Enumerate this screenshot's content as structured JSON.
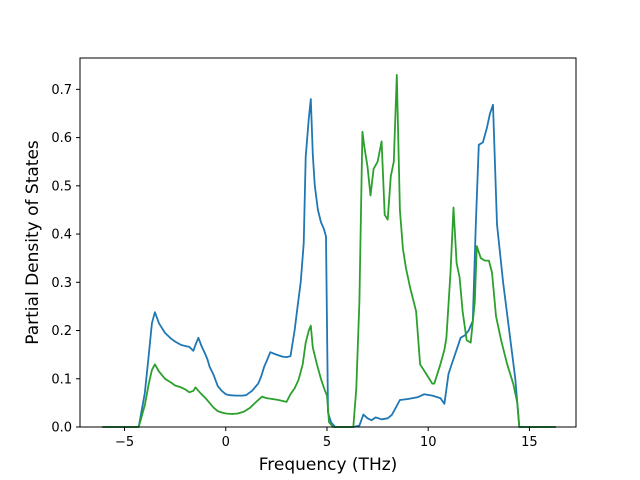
{
  "chart_data": {
    "type": "line",
    "title": "",
    "xlabel": "Frequency (THz)",
    "ylabel": "Partial Density of States",
    "xlim": [
      -7.2,
      17.3
    ],
    "ylim": [
      0.0,
      0.765
    ],
    "xticks": [
      -5,
      0,
      5,
      10,
      15
    ],
    "xtick_labels": [
      "−5",
      "0",
      "5",
      "10",
      "15"
    ],
    "yticks": [
      0.0,
      0.1,
      0.2,
      0.3,
      0.4,
      0.5,
      0.6,
      0.7
    ],
    "ytick_labels": [
      "0.0",
      "0.1",
      "0.2",
      "0.3",
      "0.4",
      "0.5",
      "0.6",
      "0.7"
    ],
    "grid": false,
    "legend": "none",
    "series": [
      {
        "color": "#1f77b4",
        "x": [
          -6.1,
          -4.3,
          -4.0,
          -3.8,
          -3.65,
          -3.5,
          -3.3,
          -3.0,
          -2.7,
          -2.5,
          -2.2,
          -2.0,
          -1.8,
          -1.6,
          -1.5,
          -1.35,
          -1.2,
          -1.0,
          -0.9,
          -0.8,
          -0.6,
          -0.4,
          -0.2,
          0.0,
          0.2,
          0.5,
          0.8,
          1.0,
          1.3,
          1.6,
          1.75,
          1.9,
          2.0,
          2.2,
          2.5,
          2.8,
          3.0,
          3.2,
          3.4,
          3.55,
          3.7,
          3.85,
          3.95,
          4.1,
          4.2,
          4.3,
          4.4,
          4.55,
          4.7,
          4.85,
          4.95,
          5.05,
          5.2,
          5.4,
          5.8,
          6.3,
          6.6,
          6.8,
          7.0,
          7.2,
          7.4,
          7.7,
          8.0,
          8.2,
          8.4,
          8.6,
          9.0,
          9.5,
          9.8,
          10.2,
          10.6,
          10.8,
          11.0,
          11.2,
          11.4,
          11.6,
          11.8,
          12.0,
          12.2,
          12.35,
          12.5,
          12.7,
          12.9,
          13.05,
          13.2,
          13.4,
          13.7,
          14.0,
          14.3,
          14.5,
          15.0,
          16.3
        ],
        "values": [
          0.0,
          0.0,
          0.07,
          0.15,
          0.215,
          0.238,
          0.215,
          0.195,
          0.183,
          0.177,
          0.17,
          0.168,
          0.166,
          0.158,
          0.17,
          0.185,
          0.168,
          0.15,
          0.14,
          0.125,
          0.108,
          0.085,
          0.075,
          0.068,
          0.066,
          0.065,
          0.065,
          0.066,
          0.075,
          0.09,
          0.105,
          0.125,
          0.135,
          0.155,
          0.15,
          0.146,
          0.145,
          0.147,
          0.2,
          0.25,
          0.3,
          0.38,
          0.56,
          0.64,
          0.68,
          0.565,
          0.5,
          0.45,
          0.425,
          0.41,
          0.395,
          0.03,
          0.01,
          0.0,
          0.0,
          0.0,
          0.003,
          0.026,
          0.018,
          0.014,
          0.02,
          0.016,
          0.018,
          0.025,
          0.04,
          0.056,
          0.058,
          0.062,
          0.068,
          0.065,
          0.06,
          0.048,
          0.11,
          0.135,
          0.16,
          0.185,
          0.19,
          0.2,
          0.22,
          0.42,
          0.585,
          0.59,
          0.62,
          0.65,
          0.668,
          0.42,
          0.3,
          0.2,
          0.1,
          0.0,
          0.0,
          0.0
        ]
      },
      {
        "color": "#2ca02c",
        "x": [
          -6.1,
          -4.3,
          -4.0,
          -3.8,
          -3.65,
          -3.5,
          -3.3,
          -3.0,
          -2.7,
          -2.5,
          -2.2,
          -2.0,
          -1.8,
          -1.6,
          -1.5,
          -1.35,
          -1.2,
          -1.0,
          -0.8,
          -0.6,
          -0.4,
          -0.2,
          0.0,
          0.3,
          0.6,
          0.9,
          1.2,
          1.5,
          1.8,
          2.0,
          2.3,
          2.6,
          3.0,
          3.2,
          3.4,
          3.6,
          3.8,
          3.95,
          4.1,
          4.2,
          4.3,
          4.5,
          4.7,
          4.9,
          5.0,
          5.1,
          5.3,
          5.8,
          6.3,
          6.45,
          6.6,
          6.75,
          6.85,
          7.0,
          7.15,
          7.3,
          7.5,
          7.7,
          7.85,
          8.0,
          8.15,
          8.3,
          8.45,
          8.6,
          8.75,
          8.9,
          9.1,
          9.4,
          9.6,
          9.9,
          10.2,
          10.3,
          10.6,
          10.8,
          10.9,
          11.1,
          11.25,
          11.4,
          11.55,
          11.7,
          11.9,
          12.1,
          12.3,
          12.4,
          12.6,
          12.8,
          13.0,
          13.15,
          13.35,
          13.6,
          13.9,
          14.2,
          14.4,
          14.5,
          15.0,
          16.3
        ],
        "values": [
          0.0,
          0.0,
          0.045,
          0.09,
          0.118,
          0.13,
          0.115,
          0.1,
          0.092,
          0.086,
          0.082,
          0.078,
          0.072,
          0.075,
          0.082,
          0.075,
          0.068,
          0.06,
          0.05,
          0.04,
          0.033,
          0.03,
          0.028,
          0.027,
          0.028,
          0.032,
          0.04,
          0.052,
          0.063,
          0.06,
          0.058,
          0.056,
          0.052,
          0.068,
          0.08,
          0.098,
          0.13,
          0.175,
          0.2,
          0.21,
          0.165,
          0.13,
          0.1,
          0.075,
          0.065,
          0.01,
          0.0,
          0.0,
          0.0,
          0.08,
          0.26,
          0.612,
          0.58,
          0.54,
          0.48,
          0.535,
          0.55,
          0.592,
          0.44,
          0.43,
          0.52,
          0.55,
          0.73,
          0.45,
          0.37,
          0.33,
          0.29,
          0.24,
          0.13,
          0.11,
          0.09,
          0.09,
          0.13,
          0.16,
          0.185,
          0.32,
          0.455,
          0.34,
          0.31,
          0.24,
          0.18,
          0.175,
          0.26,
          0.375,
          0.35,
          0.345,
          0.345,
          0.32,
          0.23,
          0.18,
          0.13,
          0.09,
          0.05,
          0.0,
          0.0,
          0.0
        ]
      }
    ]
  }
}
